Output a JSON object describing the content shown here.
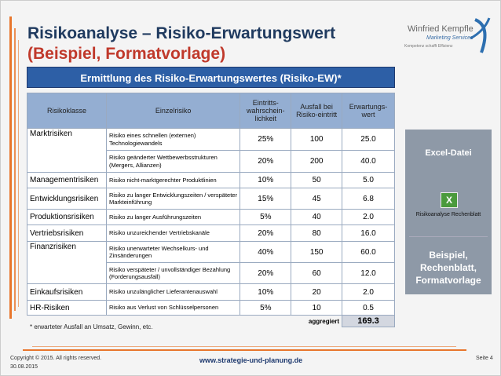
{
  "title": "Risikoanalyse – Risiko-Erwartungswert",
  "subtitle": "(Beispiel, Formatvorlage)",
  "logo": {
    "name": "Winfried Kempfle",
    "sub": "Marketing Services",
    "slogan": "Kompetenz schafft Effizienz"
  },
  "banner": "Ermittlung des Risiko-Erwartungswertes (Risiko-EW)*",
  "table": {
    "headers": [
      "Risikoklasse",
      "Einzelrisiko",
      "Eintritts-wahrschein-lichkeit",
      "Ausfall bei Risiko-eintritt",
      "Erwartungs-wert"
    ],
    "rows": [
      {
        "cls": "Marktrisiken",
        "risk": "Risiko eines schnellen (externen) Technologiewandels",
        "p": "25%",
        "a": "100",
        "e": "25.0"
      },
      {
        "cls": "",
        "risk": "Risiko geänderter Wettbewerbsstrukturen (Mergers, Allianzen)",
        "p": "20%",
        "a": "200",
        "e": "40.0"
      },
      {
        "cls": "Managementrisiken",
        "risk": "Risiko nicht-marktgerechter Produktlinien",
        "p": "10%",
        "a": "50",
        "e": "5.0"
      },
      {
        "cls": "Entwicklungsrisiken",
        "risk": "Risiko zu langer Entwicklungszeiten / verspäteter Markteinführung",
        "p": "15%",
        "a": "45",
        "e": "6.8"
      },
      {
        "cls": "Produktionsrisiken",
        "risk": "Risiko zu langer Ausführungszeiten",
        "p": "5%",
        "a": "40",
        "e": "2.0"
      },
      {
        "cls": "Vertriebsrisiken",
        "risk": "Risiko unzureichender Vertriebskanäle",
        "p": "20%",
        "a": "80",
        "e": "16.0"
      },
      {
        "cls": "Finanzrisiken",
        "risk": "Risiko unerwarteter Wechselkurs- und Zinsänderungen",
        "p": "40%",
        "a": "150",
        "e": "60.0"
      },
      {
        "cls": "",
        "risk": "Risiko verspäteter / unvollständiger Bezahlung (Forderungsausfall)",
        "p": "20%",
        "a": "60",
        "e": "12.0"
      },
      {
        "cls": "Einkaufsrisiken",
        "risk": "Risiko unzulänglicher Lieferantenauswahl",
        "p": "10%",
        "a": "20",
        "e": "2.0"
      },
      {
        "cls": "HR-Risiken",
        "risk": "Risiko aus Verlust von Schlüsselpersonen",
        "p": "5%",
        "a": "10",
        "e": "0.5"
      }
    ],
    "aggregate_label": "aggregiert",
    "aggregate_value": "169.3"
  },
  "side": {
    "title": "Excel-Datei",
    "file_label": "Risikoanalyse Rechenblatt",
    "icon": "excel-file-icon",
    "bottom": "Beispiel, Rechenblatt, Formatvorlage"
  },
  "footnote": "* erwarteter Ausfall an Umsatz, Gewinn, etc.",
  "footer": {
    "copyright": "Copyright © 2015. All rights reserved.",
    "date": "30.08.2015",
    "url": "www.strategie-und-planung.de",
    "page": "Seite 4"
  }
}
